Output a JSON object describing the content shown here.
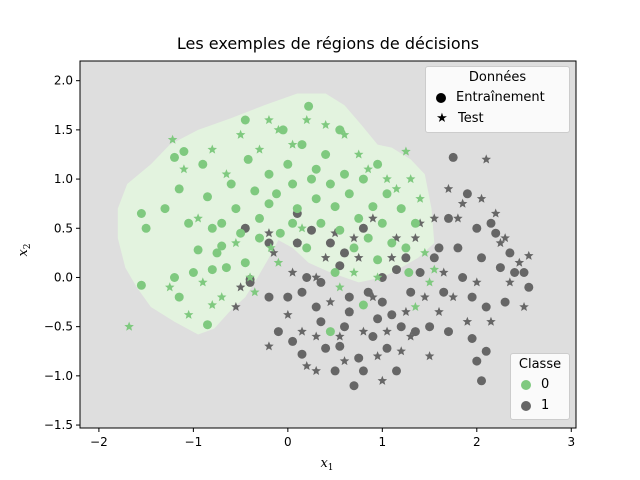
{
  "chart_data": {
    "type": "scatter",
    "title": "Les exemples de régions de décisions",
    "xlabel": "x",
    "xlabel_sub": "1",
    "ylabel": "x",
    "ylabel_sub": "2",
    "xlim": [
      -2.2,
      3.05
    ],
    "ylim": [
      -1.53,
      2.2
    ],
    "xticks": [
      "−2",
      "−1",
      "0",
      "1",
      "2",
      "3"
    ],
    "xtick_values": [
      -2,
      -1,
      0,
      1,
      2,
      3
    ],
    "yticks": [
      "−1.5",
      "−1.0",
      "−0.5",
      "0.0",
      "0.5",
      "1.0",
      "1.5",
      "2.0"
    ],
    "ytick_values": [
      -1.5,
      -1.0,
      -0.5,
      0.0,
      0.5,
      1.0,
      1.5,
      2.0
    ],
    "grid": false,
    "background_region_color": "#dedede",
    "class0_region_color": "#e3f3df",
    "class0_region_outline": [
      [
        -1.8,
        0.7
      ],
      [
        -1.7,
        0.95
      ],
      [
        -1.45,
        1.15
      ],
      [
        -1.25,
        1.35
      ],
      [
        -0.95,
        1.5
      ],
      [
        -0.6,
        1.62
      ],
      [
        -0.25,
        1.75
      ],
      [
        0.1,
        1.87
      ],
      [
        0.4,
        1.87
      ],
      [
        0.6,
        1.75
      ],
      [
        0.78,
        1.55
      ],
      [
        0.95,
        1.35
      ],
      [
        1.1,
        1.32
      ],
      [
        1.3,
        1.2
      ],
      [
        1.45,
        1.05
      ],
      [
        1.52,
        0.7
      ],
      [
        1.55,
        0.35
      ],
      [
        1.38,
        0.2
      ],
      [
        1.2,
        0.1
      ],
      [
        1.0,
        0.0
      ],
      [
        0.75,
        -0.05
      ],
      [
        0.45,
        0.05
      ],
      [
        0.22,
        0.15
      ],
      [
        0.05,
        0.3
      ],
      [
        -0.1,
        0.38
      ],
      [
        -0.2,
        0.2
      ],
      [
        -0.32,
        0.0
      ],
      [
        -0.45,
        -0.2
      ],
      [
        -0.62,
        -0.35
      ],
      [
        -0.78,
        -0.52
      ],
      [
        -0.95,
        -0.58
      ],
      [
        -1.2,
        -0.45
      ],
      [
        -1.45,
        -0.3
      ],
      [
        -1.6,
        -0.1
      ],
      [
        -1.72,
        0.1
      ],
      [
        -1.8,
        0.4
      ]
    ],
    "classes": [
      {
        "name": "0",
        "color": "#7fc97f"
      },
      {
        "name": "1",
        "color": "#666666"
      }
    ],
    "marker_types": [
      {
        "name": "Entraînement",
        "marker": "circle"
      },
      {
        "name": "Test",
        "marker": "star"
      }
    ],
    "legend_markers_title": "Données",
    "legend_classes_title": "Classe",
    "legend_markers_position": "top-right",
    "legend_classes_position": "bottom-right",
    "series": [
      {
        "class": "0",
        "marker": "circle",
        "points": [
          [
            -1.55,
            0.65
          ],
          [
            -1.5,
            0.5
          ],
          [
            -1.55,
            -0.08
          ],
          [
            -1.2,
            1.22
          ],
          [
            -1.1,
            1.28
          ],
          [
            -1.15,
            0.9
          ],
          [
            -1.05,
            0.55
          ],
          [
            -1.2,
            0.0
          ],
          [
            -1.15,
            -0.2
          ],
          [
            -0.9,
            1.15
          ],
          [
            -0.85,
            0.82
          ],
          [
            -0.8,
            0.5
          ],
          [
            -0.75,
            0.25
          ],
          [
            -0.8,
            0.08
          ],
          [
            -0.7,
            0.32
          ],
          [
            -0.85,
            -0.48
          ],
          [
            -0.6,
            0.95
          ],
          [
            -0.55,
            0.7
          ],
          [
            -0.5,
            0.45
          ],
          [
            -0.45,
            1.6
          ],
          [
            -0.42,
            1.2
          ],
          [
            -0.35,
            0.88
          ],
          [
            -0.3,
            0.6
          ],
          [
            -0.45,
            0.15
          ],
          [
            -0.2,
            1.05
          ],
          [
            -0.12,
            0.85
          ],
          [
            -0.08,
            0.45
          ],
          [
            -0.05,
            1.5
          ],
          [
            0.0,
            1.15
          ],
          [
            0.05,
            0.95
          ],
          [
            0.1,
            0.7
          ],
          [
            0.15,
            1.35
          ],
          [
            0.22,
            1.74
          ],
          [
            0.25,
            1.0
          ],
          [
            0.3,
            0.8
          ],
          [
            0.35,
            0.55
          ],
          [
            0.4,
            1.25
          ],
          [
            0.45,
            0.95
          ],
          [
            0.5,
            0.72
          ],
          [
            0.55,
            0.48
          ],
          [
            0.6,
            1.05
          ],
          [
            0.65,
            0.85
          ],
          [
            0.7,
            0.3
          ],
          [
            0.75,
            0.6
          ],
          [
            0.8,
            1.0
          ],
          [
            0.85,
            0.4
          ],
          [
            0.9,
            0.72
          ],
          [
            0.95,
            0.18
          ],
          [
            1.0,
            0.55
          ],
          [
            1.05,
            0.85
          ],
          [
            1.1,
            0.35
          ],
          [
            1.2,
            0.7
          ],
          [
            1.25,
            0.3
          ],
          [
            1.28,
            0.05
          ],
          [
            1.35,
            0.55
          ],
          [
            -1.0,
            0.05
          ],
          [
            -0.65,
            0.1
          ],
          [
            0.5,
            0.05
          ],
          [
            0.8,
            -0.28
          ],
          [
            0.45,
            -0.55
          ],
          [
            -0.3,
            0.4
          ],
          [
            -0.2,
            0.75
          ],
          [
            0.05,
            0.55
          ],
          [
            0.2,
            0.3
          ],
          [
            0.3,
            1.1
          ],
          [
            -0.7,
            0.55
          ],
          [
            -1.3,
            0.7
          ],
          [
            -0.95,
            0.28
          ],
          [
            0.55,
            1.5
          ],
          [
            0.95,
            1.15
          ]
        ]
      },
      {
        "class": "0",
        "marker": "star",
        "points": [
          [
            -1.68,
            -0.5
          ],
          [
            -1.22,
            1.4
          ],
          [
            -1.25,
            -0.1
          ],
          [
            -1.1,
            1.1
          ],
          [
            -1.05,
            -0.38
          ],
          [
            -0.95,
            0.6
          ],
          [
            -0.9,
            -0.05
          ],
          [
            -0.8,
            1.3
          ],
          [
            -0.7,
            -0.2
          ],
          [
            -0.65,
            1.05
          ],
          [
            -0.55,
            0.35
          ],
          [
            -0.5,
            1.45
          ],
          [
            -0.4,
            0.0
          ],
          [
            -0.35,
            -0.15
          ],
          [
            -0.3,
            1.3
          ],
          [
            -0.2,
            1.6
          ],
          [
            -0.18,
            0.3
          ],
          [
            -0.1,
            1.5
          ],
          [
            0.05,
            1.35
          ],
          [
            0.15,
            0.5
          ],
          [
            0.2,
            1.6
          ],
          [
            0.4,
            1.55
          ],
          [
            0.6,
            1.45
          ],
          [
            0.75,
            1.25
          ],
          [
            0.85,
            1.1
          ],
          [
            1.05,
            1.0
          ],
          [
            1.15,
            0.9
          ],
          [
            1.3,
            1.0
          ],
          [
            1.4,
            0.8
          ],
          [
            1.45,
            0.25
          ],
          [
            1.5,
            -0.05
          ],
          [
            1.35,
            -0.3
          ],
          [
            1.55,
            0.08
          ],
          [
            0.95,
            0.0
          ],
          [
            0.7,
            0.05
          ],
          [
            0.55,
            -0.1
          ],
          [
            -0.1,
            0.15
          ],
          [
            -0.8,
            -0.28
          ],
          [
            1.25,
            1.28
          ]
        ]
      },
      {
        "class": "1",
        "marker": "circle",
        "points": [
          [
            -0.45,
            0.5
          ],
          [
            -0.4,
            -0.02
          ],
          [
            -0.2,
            -0.2
          ],
          [
            -0.2,
            0.35
          ],
          [
            0.0,
            -0.2
          ],
          [
            0.1,
            0.35
          ],
          [
            0.1,
            0.65
          ],
          [
            0.2,
            0.0
          ],
          [
            0.05,
            -0.65
          ],
          [
            0.15,
            -0.78
          ],
          [
            0.3,
            -0.3
          ],
          [
            0.35,
            -0.45
          ],
          [
            0.4,
            -0.72
          ],
          [
            0.5,
            -0.95
          ],
          [
            0.55,
            -0.7
          ],
          [
            0.6,
            -0.5
          ],
          [
            0.65,
            -0.2
          ],
          [
            0.7,
            -1.1
          ],
          [
            0.75,
            -0.82
          ],
          [
            0.8,
            -0.95
          ],
          [
            0.9,
            -0.6
          ],
          [
            0.95,
            -0.42
          ],
          [
            1.0,
            -0.25
          ],
          [
            1.05,
            -0.72
          ],
          [
            1.1,
            -0.38
          ],
          [
            1.15,
            -0.95
          ],
          [
            1.2,
            -0.5
          ],
          [
            1.3,
            -0.15
          ],
          [
            1.35,
            -0.55
          ],
          [
            1.4,
            0.05
          ],
          [
            1.5,
            -0.5
          ],
          [
            1.6,
            0.3
          ],
          [
            1.65,
            -0.15
          ],
          [
            1.7,
            -0.55
          ],
          [
            1.75,
            1.22
          ],
          [
            1.7,
            0.6
          ],
          [
            1.8,
            0.3
          ],
          [
            1.85,
            0.0
          ],
          [
            1.9,
            0.85
          ],
          [
            1.95,
            -0.2
          ],
          [
            2.0,
            0.5
          ],
          [
            2.05,
            0.2
          ],
          [
            2.1,
            -0.3
          ],
          [
            2.15,
            0.55
          ],
          [
            2.2,
            0.45
          ],
          [
            2.25,
            0.1
          ],
          [
            2.3,
            -0.25
          ],
          [
            2.35,
            0.25
          ],
          [
            2.4,
            0.05
          ],
          [
            2.5,
            0.05
          ],
          [
            2.55,
            -0.1
          ],
          [
            2.0,
            -0.85
          ],
          [
            2.05,
            -1.05
          ],
          [
            2.1,
            -0.75
          ],
          [
            1.95,
            -0.62
          ],
          [
            0.25,
            0.48
          ],
          [
            0.45,
            0.35
          ],
          [
            0.6,
            0.25
          ],
          [
            0.8,
            0.5
          ],
          [
            1.0,
            0.0
          ],
          [
            -0.1,
            -0.55
          ],
          [
            0.15,
            -0.15
          ],
          [
            -0.4,
            -0.05
          ],
          [
            0.35,
            -0.05
          ],
          [
            0.55,
            0.12
          ],
          [
            1.55,
            0.2
          ],
          [
            1.25,
            0.2
          ],
          [
            0.85,
            -0.15
          ],
          [
            1.15,
            0.08
          ],
          [
            0.65,
            -0.35
          ]
        ]
      },
      {
        "class": "1",
        "marker": "star",
        "points": [
          [
            -0.55,
            -0.3
          ],
          [
            -0.5,
            -0.1
          ],
          [
            -0.2,
            -0.7
          ],
          [
            -0.15,
            0.25
          ],
          [
            0.0,
            -0.38
          ],
          [
            0.05,
            0.05
          ],
          [
            0.15,
            -0.55
          ],
          [
            0.2,
            -0.9
          ],
          [
            0.3,
            -0.95
          ],
          [
            0.4,
            0.2
          ],
          [
            0.45,
            -0.25
          ],
          [
            0.55,
            -0.6
          ],
          [
            0.65,
            -0.35
          ],
          [
            0.75,
            0.2
          ],
          [
            0.8,
            -0.55
          ],
          [
            0.9,
            -0.2
          ],
          [
            0.95,
            -0.8
          ],
          [
            1.05,
            -0.55
          ],
          [
            1.1,
            0.2
          ],
          [
            1.2,
            -0.75
          ],
          [
            1.3,
            -0.6
          ],
          [
            1.35,
            0.4
          ],
          [
            1.45,
            -0.2
          ],
          [
            1.5,
            -0.8
          ],
          [
            1.6,
            -0.35
          ],
          [
            1.65,
            0.05
          ],
          [
            1.75,
            -0.2
          ],
          [
            1.8,
            0.6
          ],
          [
            1.85,
            0.75
          ],
          [
            1.9,
            -0.45
          ],
          [
            2.0,
            -0.05
          ],
          [
            2.05,
            0.8
          ],
          [
            2.1,
            1.2
          ],
          [
            2.15,
            -0.45
          ],
          [
            2.2,
            0.65
          ],
          [
            2.25,
            0.35
          ],
          [
            2.3,
            0.4
          ],
          [
            2.35,
            -0.05
          ],
          [
            2.45,
            0.15
          ],
          [
            2.5,
            -0.3
          ],
          [
            -0.2,
            0.45
          ],
          [
            0.1,
            0.35
          ],
          [
            0.3,
            0.0
          ],
          [
            0.5,
            0.45
          ],
          [
            0.7,
            0.4
          ],
          [
            0.9,
            0.6
          ],
          [
            1.15,
            0.4
          ],
          [
            1.4,
            0.55
          ],
          [
            1.55,
            0.6
          ],
          [
            1.7,
            0.9
          ],
          [
            2.55,
            0.22
          ],
          [
            1.0,
            -1.05
          ],
          [
            0.3,
            -0.6
          ],
          [
            0.6,
            -0.85
          ],
          [
            1.25,
            -0.35
          ]
        ]
      }
    ]
  }
}
